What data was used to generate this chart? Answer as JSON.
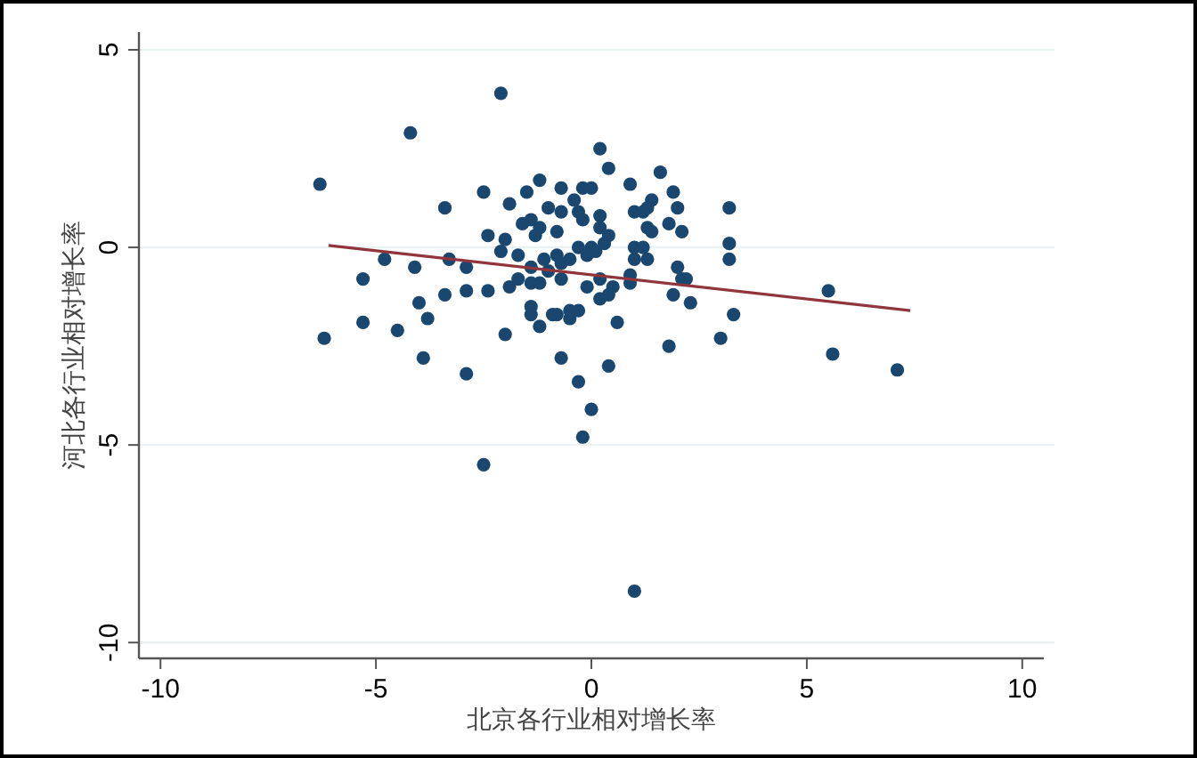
{
  "chart_data": {
    "type": "scatter",
    "xlabel": "北京各行业相对增长率",
    "ylabel": "河北各行业相对增长率",
    "xlim": [
      -10.5,
      10.5
    ],
    "ylim": [
      -10.4,
      5.45
    ],
    "xticks": [
      -10,
      -5,
      0,
      5,
      10
    ],
    "yticks": [
      -10,
      -5,
      0,
      5
    ],
    "grid": "y",
    "series": [
      {
        "marker": "circle",
        "color": "#1a476f",
        "x": [
          -6.3,
          -6.2,
          -4.2,
          -2.1,
          -2.5,
          1.0,
          5.5,
          5.6,
          7.1,
          3.2,
          3.2,
          3.2,
          3.3,
          3.0,
          -0.2,
          0.0,
          -0.3,
          0.4,
          -2.9,
          -3.9,
          -4.5,
          -5.3,
          -5.3,
          -4.8,
          -4.1,
          -3.3,
          -2.9,
          -4.0,
          -3.8,
          -3.4,
          -2.9,
          -2.4,
          -2.0,
          -1.9,
          -1.7,
          -1.4,
          -1.4,
          -1.4,
          -1.2,
          -0.9,
          -0.7,
          -0.5,
          -0.3,
          0.2,
          0.6,
          1.9,
          1.8,
          2.3,
          2.1,
          2.0,
          -2.5,
          -3.4,
          -1.9,
          -1.5,
          -2.4,
          -2.0,
          -2.1,
          -1.7,
          -1.6,
          -1.3,
          0.2,
          0.4,
          1.6,
          -1.2,
          -0.7,
          -0.2,
          0.0,
          0.9,
          1.9,
          -1.0,
          -0.7,
          -0.4,
          -0.3,
          -0.2,
          0.2,
          1.4,
          1.3,
          1.0,
          1.2,
          2.0,
          1.8,
          2.1,
          -1.4,
          -1.2,
          -0.8,
          0.2,
          0.4,
          0.3,
          1.3,
          1.4,
          1.0,
          1.2,
          1.0,
          1.3,
          -0.3,
          -0.5,
          -0.7,
          0.0,
          -0.1,
          0.1,
          -0.8,
          -1.1,
          -1.4,
          -1.0,
          -0.7,
          -1.2,
          -0.1,
          0.2,
          0.5,
          0.9,
          0.9,
          2.2,
          0.4,
          -0.5,
          -0.8
        ],
        "values": [
          1.6,
          -2.3,
          2.9,
          3.9,
          -5.5,
          -8.7,
          -1.1,
          -2.7,
          -3.1,
          1.0,
          0.1,
          -0.3,
          -1.7,
          -2.3,
          -4.8,
          -4.1,
          -3.4,
          -3.0,
          -3.2,
          -2.8,
          -2.1,
          -1.9,
          -0.8,
          -0.3,
          -0.5,
          -0.3,
          -0.5,
          -1.4,
          -1.8,
          -1.2,
          -1.1,
          -1.1,
          -2.2,
          -1.0,
          -0.8,
          -0.9,
          -1.5,
          -1.7,
          -2.0,
          -1.7,
          -2.8,
          -1.8,
          -1.6,
          -1.3,
          -1.9,
          -1.2,
          -2.5,
          -1.4,
          -0.8,
          -0.5,
          1.4,
          1.0,
          1.1,
          1.4,
          0.3,
          0.2,
          -0.1,
          -0.2,
          0.6,
          0.3,
          2.5,
          2.0,
          1.9,
          1.7,
          1.5,
          1.5,
          1.5,
          1.6,
          1.4,
          1.0,
          0.9,
          1.2,
          0.9,
          0.7,
          0.8,
          1.2,
          1.0,
          0.9,
          0.9,
          1.0,
          0.6,
          0.4,
          0.7,
          0.5,
          0.4,
          0.5,
          0.3,
          0.1,
          0.5,
          0.4,
          0.0,
          0.0,
          -0.3,
          -0.3,
          0.0,
          -0.3,
          -0.4,
          0.0,
          -0.2,
          -0.1,
          -0.2,
          -0.3,
          -0.5,
          -0.6,
          -0.8,
          -0.9,
          -1.0,
          -0.8,
          -1.0,
          -0.7,
          -0.9,
          -0.8,
          -1.2,
          -1.6,
          -1.7
        ]
      },
      {
        "type": "line",
        "color": "#90353b",
        "x": [
          -6.1,
          7.4
        ],
        "values": [
          0.05,
          -1.6
        ]
      }
    ]
  }
}
